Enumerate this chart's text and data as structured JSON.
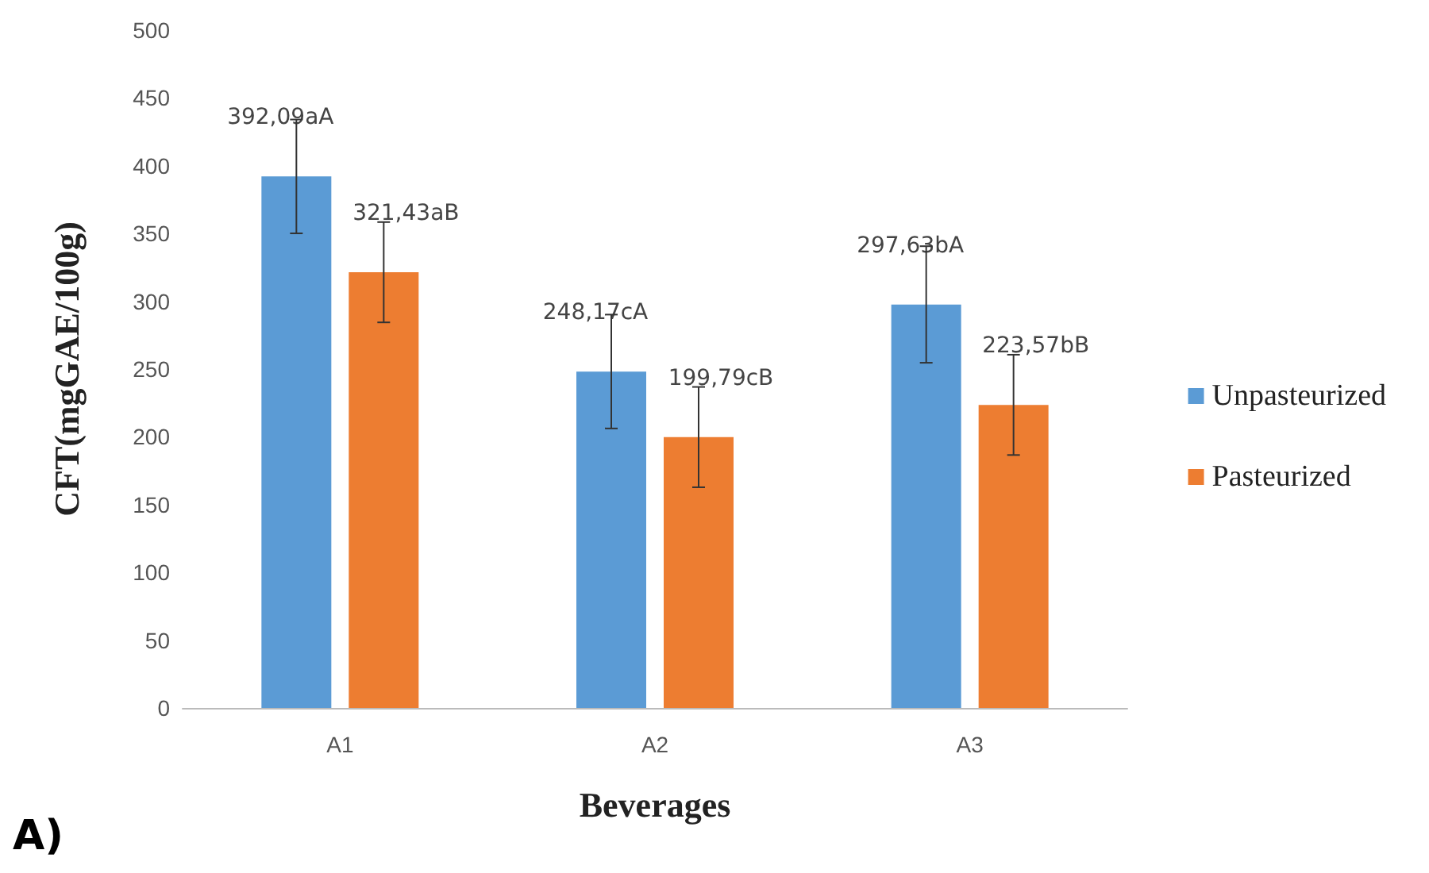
{
  "chart_data": {
    "type": "bar",
    "xlabel": "Beverages",
    "ylabel": "CFT(mgGAE/100g)",
    "categories": [
      "A1",
      "A2",
      "A3"
    ],
    "series": [
      {
        "name": "Unpasteurized",
        "color": "#5b9bd5",
        "values": [
          392.09,
          248.17,
          297.63
        ],
        "errors": [
          42,
          42,
          43
        ],
        "value_labels": [
          "392,09aA",
          "248,17cA",
          "297,63bA"
        ]
      },
      {
        "name": "Pasteurized",
        "color": "#ed7d31",
        "values": [
          321.43,
          199.79,
          223.57
        ],
        "errors": [
          37,
          37,
          37
        ],
        "value_labels": [
          "321,43aB",
          "199,79cB",
          "223,57bB"
        ]
      }
    ],
    "ylim": [
      0,
      500
    ],
    "yticks": [
      0,
      50,
      100,
      150,
      200,
      250,
      300,
      350,
      400,
      450,
      500
    ],
    "grid": false,
    "legend": "right",
    "annotations": [
      "A)"
    ]
  }
}
